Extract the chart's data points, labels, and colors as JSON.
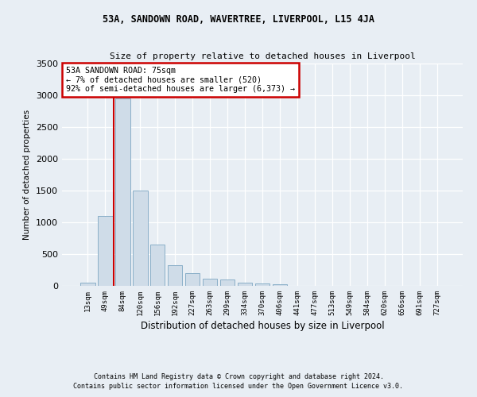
{
  "title1": "53A, SANDOWN ROAD, WAVERTREE, LIVERPOOL, L15 4JA",
  "title2": "Size of property relative to detached houses in Liverpool",
  "xlabel": "Distribution of detached houses by size in Liverpool",
  "ylabel": "Number of detached properties",
  "bin_labels": [
    "13sqm",
    "49sqm",
    "84sqm",
    "120sqm",
    "156sqm",
    "192sqm",
    "227sqm",
    "263sqm",
    "299sqm",
    "334sqm",
    "370sqm",
    "406sqm",
    "441sqm",
    "477sqm",
    "513sqm",
    "549sqm",
    "584sqm",
    "620sqm",
    "656sqm",
    "691sqm",
    "727sqm"
  ],
  "bar_heights": [
    50,
    1100,
    2950,
    1500,
    650,
    330,
    200,
    110,
    105,
    50,
    40,
    30,
    5,
    2,
    1,
    0,
    0,
    0,
    0,
    0,
    0
  ],
  "bar_color": "#cfdce8",
  "bar_edge_color": "#8aafc8",
  "property_sqm": 75,
  "pct_smaller": 7,
  "n_smaller": 520,
  "pct_semi_larger": 92,
  "n_semi_larger": "6,373",
  "annotation_box_color": "#cc0000",
  "red_line_x": 1.5,
  "ylim": [
    0,
    3500
  ],
  "yticks": [
    0,
    500,
    1000,
    1500,
    2000,
    2500,
    3000,
    3500
  ],
  "footer1": "Contains HM Land Registry data © Crown copyright and database right 2024.",
  "footer2": "Contains public sector information licensed under the Open Government Licence v3.0.",
  "bg_color": "#e8eef4",
  "plot_bg_color": "#e8eef4",
  "grid_color": "#ffffff"
}
